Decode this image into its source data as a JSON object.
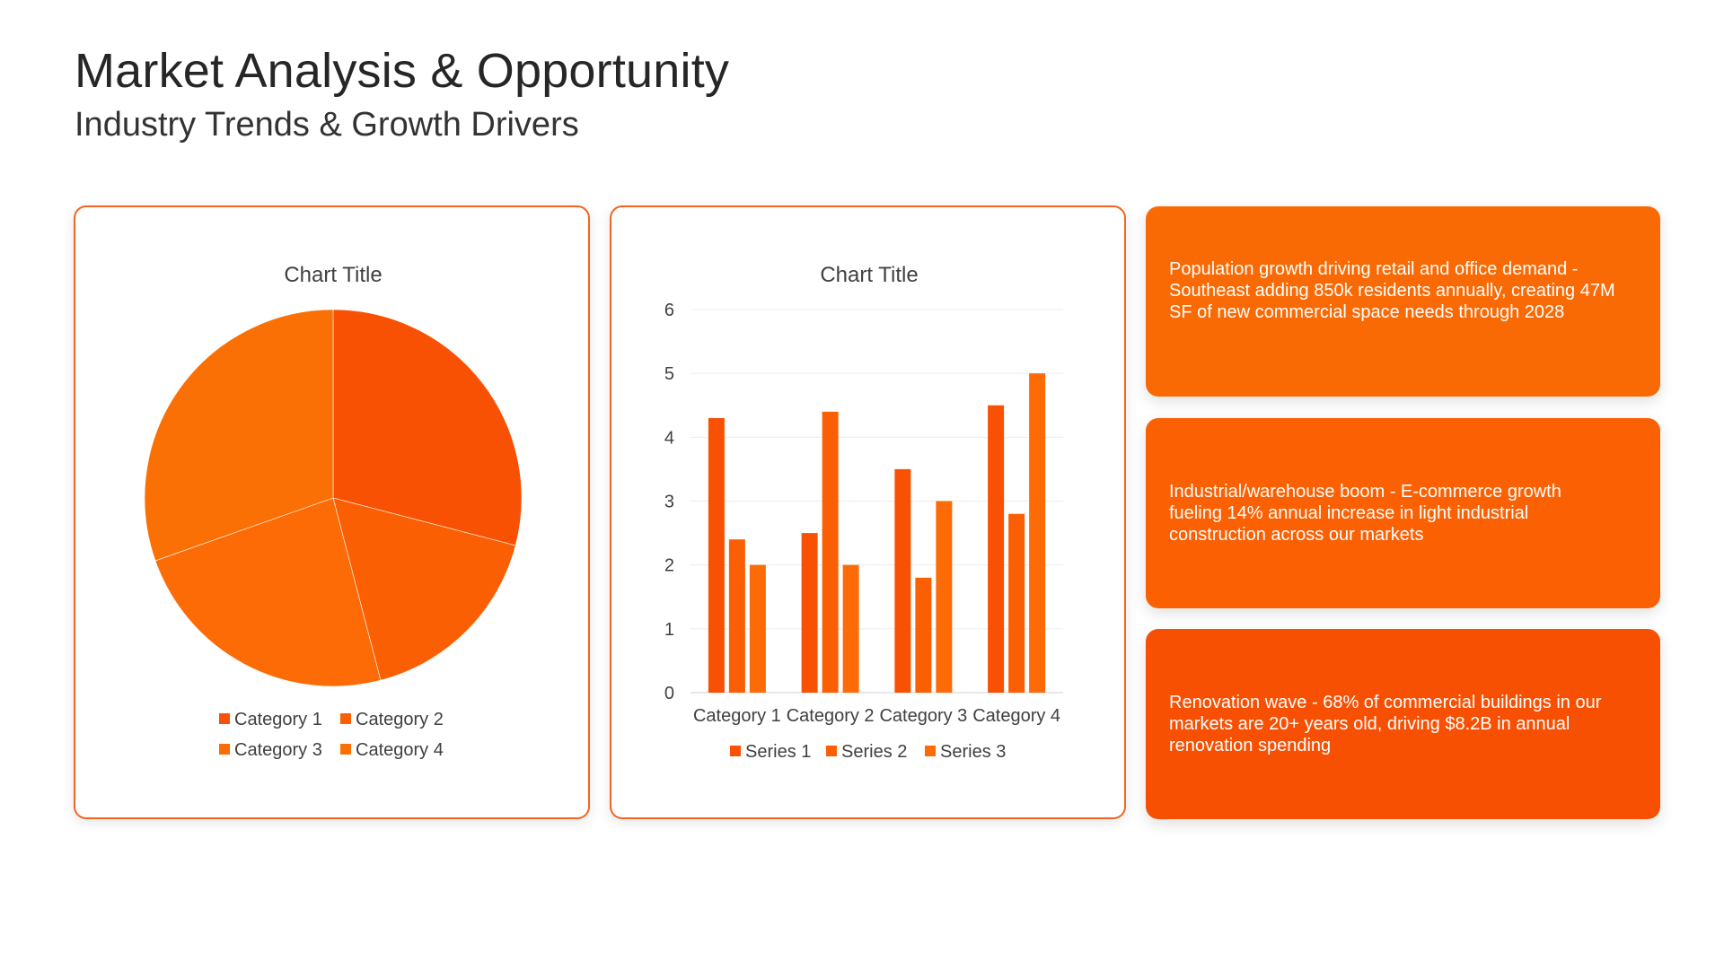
{
  "header": {
    "title": "Market Analysis & Opportunity",
    "subtitle": "Industry Trends & Growth Drivers"
  },
  "colors": {
    "accent": "#F26522",
    "card_1_bg": "#FA6A04",
    "card_2_bg": "#FB6103",
    "card_3_bg": "#F85003"
  },
  "chart_data": [
    {
      "type": "pie",
      "title": "Chart Title",
      "categories": [
        "Category 1",
        "Category 2",
        "Category 3",
        "Category 4"
      ],
      "values": [
        4.3,
        2.5,
        3.5,
        4.5
      ],
      "colors": [
        "#F95103",
        "#FB5F04",
        "#FC6B06",
        "#FB7005"
      ],
      "legend_position": "bottom"
    },
    {
      "type": "bar",
      "title": "Chart Title",
      "categories": [
        "Category 1",
        "Category 2",
        "Category 3",
        "Category 4"
      ],
      "series": [
        {
          "name": "Series 1",
          "values": [
            4.3,
            2.5,
            3.5,
            4.5
          ],
          "color": "#F95103"
        },
        {
          "name": "Series 2",
          "values": [
            2.4,
            4.4,
            1.8,
            2.8
          ],
          "color": "#FB5F04"
        },
        {
          "name": "Series 3",
          "values": [
            2,
            2,
            3,
            5
          ],
          "color": "#FC6B06"
        }
      ],
      "ylim": [
        0,
        6
      ],
      "yticks": [
        0,
        1,
        2,
        3,
        4,
        5,
        6
      ],
      "grid": true,
      "legend_position": "bottom"
    }
  ],
  "cards": [
    {
      "text": "Population growth driving retail and office demand - Southeast adding 850k residents annually, creating 47M SF of new commercial space needs through 2028"
    },
    {
      "text": "Industrial/warehouse boom - E-commerce growth fueling 14% annual increase in light industrial construction across our markets"
    },
    {
      "text": "Renovation wave - 68% of commercial buildings in our markets are 20+ years old, driving $8.2B in annual renovation spending"
    }
  ]
}
